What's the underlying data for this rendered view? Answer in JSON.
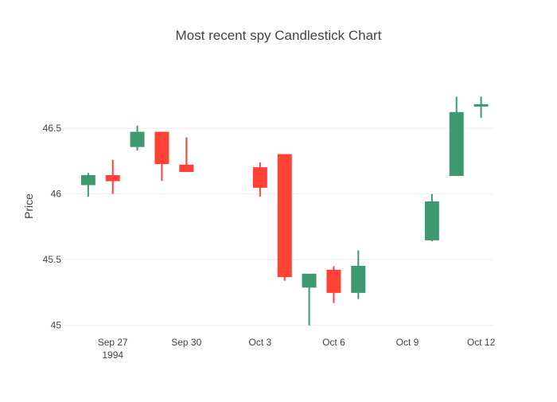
{
  "chart_data": {
    "type": "candlestick",
    "title": "Most recent spy Candlestick Chart",
    "ylabel": "Price",
    "xlabel": "",
    "ylim": [
      44.98,
      46.87
    ],
    "xlim": [
      "1994-09-25",
      "1994-10-12T12:00:00"
    ],
    "yticks": [
      45,
      45.5,
      46,
      46.5
    ],
    "xticks": [
      {
        "date": "1994-09-27",
        "label": "Sep 27",
        "sublabel": "1994"
      },
      {
        "date": "1994-09-30",
        "label": "Sep 30"
      },
      {
        "date": "1994-10-03",
        "label": "Oct 3"
      },
      {
        "date": "1994-10-06",
        "label": "Oct 6"
      },
      {
        "date": "1994-10-09",
        "label": "Oct 9"
      },
      {
        "date": "1994-10-12",
        "label": "Oct 12"
      }
    ],
    "grid": true,
    "legend": "none",
    "colors": {
      "increasing": "#3d9970",
      "decreasing": "#ff4136",
      "grid": "#eeeeee",
      "text": "#444444"
    },
    "candles": [
      {
        "date": "1994-09-26",
        "open": 46.07,
        "high": 46.16,
        "low": 45.98,
        "close": 46.14
      },
      {
        "date": "1994-09-27",
        "open": 46.14,
        "high": 46.26,
        "low": 46.0,
        "close": 46.1
      },
      {
        "date": "1994-09-28",
        "open": 46.36,
        "high": 46.52,
        "low": 46.33,
        "close": 46.47
      },
      {
        "date": "1994-09-29",
        "open": 46.47,
        "high": 46.47,
        "low": 46.1,
        "close": 46.23
      },
      {
        "date": "1994-09-30",
        "open": 46.22,
        "high": 46.43,
        "low": 46.17,
        "close": 46.17
      },
      {
        "date": "1994-10-03",
        "open": 46.2,
        "high": 46.24,
        "low": 45.98,
        "close": 46.05
      },
      {
        "date": "1994-10-04",
        "open": 46.3,
        "high": 46.3,
        "low": 45.34,
        "close": 45.37
      },
      {
        "date": "1994-10-05",
        "open": 45.29,
        "high": 45.39,
        "low": 45.0,
        "close": 45.39
      },
      {
        "date": "1994-10-06",
        "open": 45.42,
        "high": 45.45,
        "low": 45.17,
        "close": 45.25
      },
      {
        "date": "1994-10-07",
        "open": 45.25,
        "high": 45.57,
        "low": 45.2,
        "close": 45.45
      },
      {
        "date": "1994-10-10",
        "open": 45.65,
        "high": 46.0,
        "low": 45.64,
        "close": 45.94
      },
      {
        "date": "1994-10-11",
        "open": 46.14,
        "high": 46.74,
        "low": 46.14,
        "close": 46.62
      },
      {
        "date": "1994-10-12",
        "open": 46.68,
        "high": 46.74,
        "low": 46.58,
        "close": 46.68
      }
    ]
  }
}
